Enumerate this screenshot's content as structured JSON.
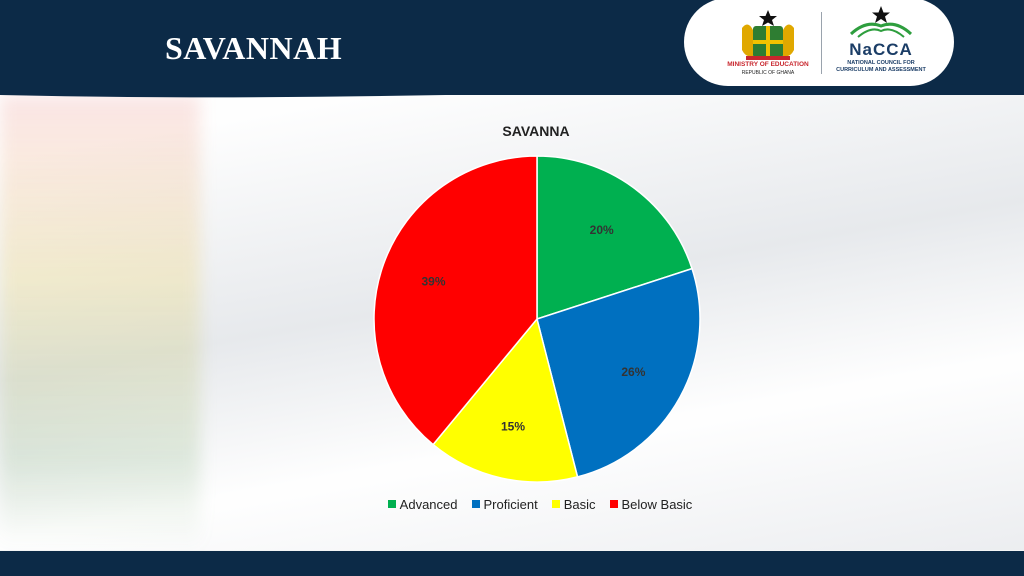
{
  "header": {
    "title": "SAVANNAH",
    "logos": {
      "moe": {
        "name": "MINISTRY OF EDUCATION",
        "sub": "REPUBLIC OF GHANA"
      },
      "nacca": {
        "name": "NaCCA",
        "sub1": "NATIONAL COUNCIL FOR",
        "sub2": "CURRICULUM AND ASSESSMENT"
      }
    }
  },
  "chart_data": {
    "type": "pie",
    "title": "SAVANNA",
    "categories": [
      "Advanced",
      "Proficient",
      "Basic",
      "Below Basic"
    ],
    "values": [
      20,
      26,
      15,
      39
    ],
    "labels": [
      "20%",
      "26%",
      "15%",
      "39%"
    ],
    "colors": [
      "#00b050",
      "#0070c0",
      "#ffff00",
      "#ff0000"
    ],
    "start_angle": "12 o'clock",
    "direction": "clockwise",
    "legend_position": "bottom"
  }
}
